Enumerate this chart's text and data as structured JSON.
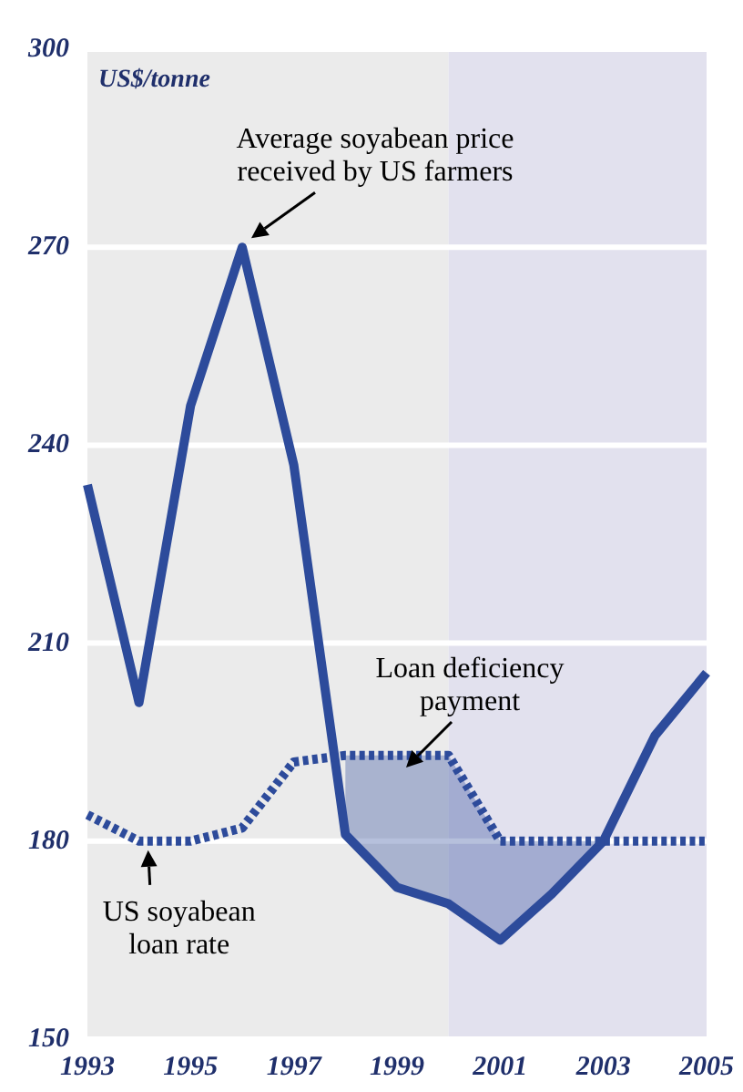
{
  "chart_data": {
    "type": "line",
    "ylabel": "US$/tonne",
    "x": [
      1993,
      1994,
      1995,
      1996,
      1997,
      1998,
      1999,
      2000,
      2001,
      2002,
      2003,
      2004,
      2005
    ],
    "series": [
      {
        "color": "#2d4b9b",
        "line_style": "solid",
        "values": [
          234,
          201,
          246,
          270,
          237,
          181,
          173,
          170.5,
          165,
          172,
          180,
          196,
          205.5
        ]
      },
      {
        "color": "#2d4b9b",
        "line_style": "dashed",
        "values": [
          184,
          180,
          180,
          182,
          192,
          193,
          193,
          193,
          180,
          180,
          180,
          180,
          180
        ],
        "lower": [
          null,
          null,
          null,
          null,
          null,
          181,
          173,
          170.5,
          165,
          172,
          180,
          null,
          null
        ],
        "upper": [
          null,
          null,
          null,
          null,
          null,
          193,
          193,
          193,
          180,
          180,
          180,
          null,
          null
        ]
      }
    ],
    "xlim": [
      1993,
      2005
    ],
    "xticks": [
      1993,
      1995,
      1997,
      1999,
      2001,
      2003,
      2005
    ],
    "ylim": [
      150,
      300
    ],
    "yticks": [
      150,
      180,
      210,
      240,
      270,
      300
    ],
    "grid": "y",
    "marker": "none",
    "bands": [
      {
        "axis": "x",
        "from": 1993,
        "to": 2000,
        "color": "#ebebeb"
      },
      {
        "axis": "x",
        "from": 2000,
        "to": 2005,
        "color": "#e2e1ee"
      }
    ],
    "annotations": [
      {
        "text": "Average soyabean price\nreceived by US farmers",
        "x": 1996,
        "y": 270
      },
      "Loan deficiency\npayment",
      {
        "text": "US soyabean\nloan rate",
        "x": 1994,
        "y": 180
      }
    ]
  }
}
